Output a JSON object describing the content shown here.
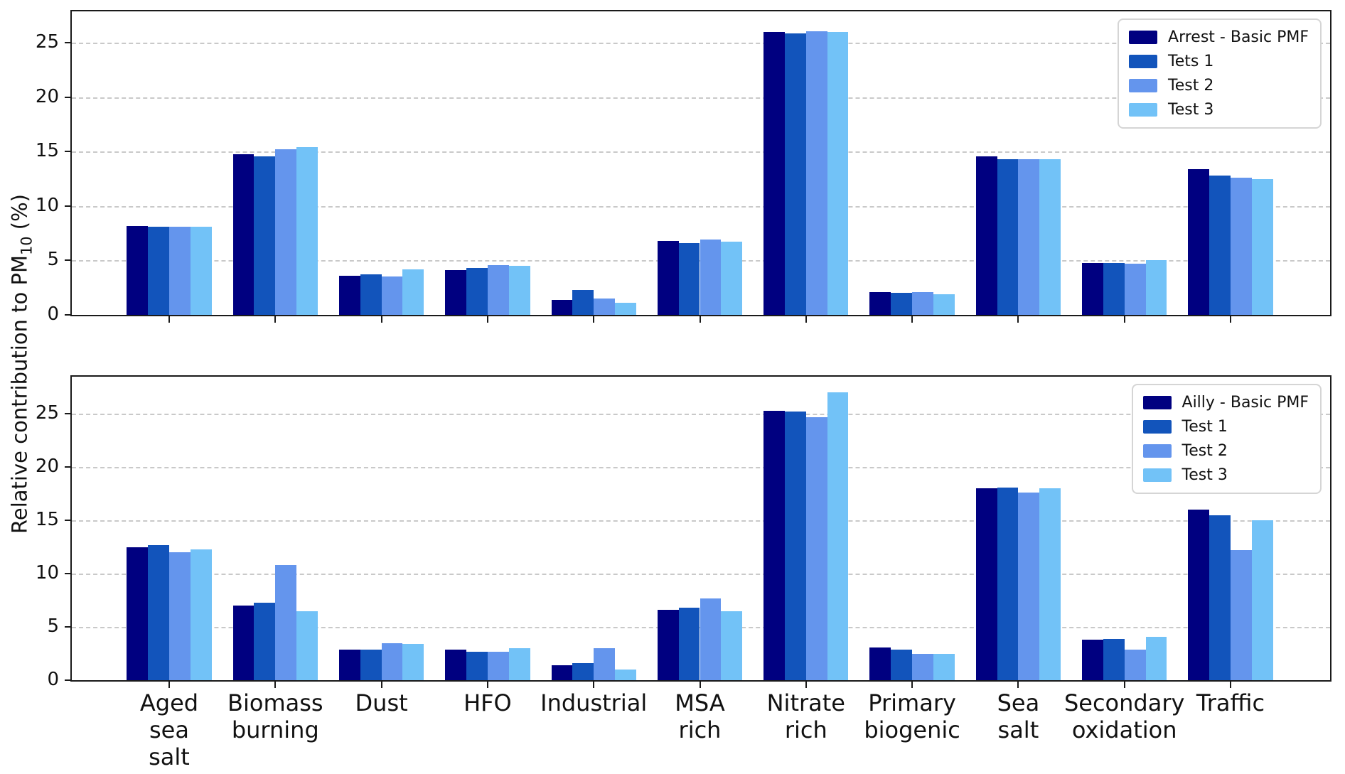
{
  "figure": {
    "ylabel": {
      "pre": "Relative contribution to PM",
      "sub": "10",
      "post": " (%)"
    }
  },
  "palette": [
    "#000080",
    "#1254bb",
    "#6495ed",
    "#72c2f7"
  ],
  "chart_data": [
    {
      "type": "bar",
      "panel": "top",
      "title": "",
      "xlabel": "",
      "ylabel": "Relative contribution to PM10 (%)",
      "ylim": [
        0,
        27.9
      ],
      "yticks": [
        0,
        5,
        10,
        15,
        20,
        25
      ],
      "grid": true,
      "show_xticklabels": false,
      "legend_position": "upper right",
      "legend_entries": [
        "Arrest - Basic PMF",
        "Tets 1",
        "Test 2",
        "Test 3"
      ],
      "categories": [
        "Aged\nsea\nsalt",
        "Biomass\nburning",
        "Dust",
        "HFO",
        "Industrial",
        "MSA\nrich",
        "Nitrate\nrich",
        "Primary\nbiogenic",
        "Sea\nsalt",
        "Secondary\noxidation",
        "Traffic"
      ],
      "series": [
        {
          "name": "Arrest - Basic PMF",
          "values": [
            8.2,
            14.8,
            3.6,
            4.1,
            1.4,
            6.8,
            26.0,
            2.1,
            14.6,
            4.8,
            13.4
          ]
        },
        {
          "name": "Tets 1",
          "values": [
            8.1,
            14.6,
            3.7,
            4.3,
            2.3,
            6.6,
            25.9,
            2.0,
            14.3,
            4.8,
            12.8
          ]
        },
        {
          "name": "Test 2",
          "values": [
            8.1,
            15.2,
            3.5,
            4.6,
            1.5,
            6.9,
            26.1,
            2.1,
            14.3,
            4.7,
            12.6
          ]
        },
        {
          "name": "Test 3",
          "values": [
            8.1,
            15.4,
            4.2,
            4.5,
            1.1,
            6.7,
            26.0,
            1.9,
            14.3,
            5.0,
            12.5
          ]
        }
      ]
    },
    {
      "type": "bar",
      "panel": "bottom",
      "title": "",
      "xlabel": "",
      "ylabel": "Relative contribution to PM10 (%)",
      "ylim": [
        0,
        28.5
      ],
      "yticks": [
        0,
        5,
        10,
        15,
        20,
        25
      ],
      "grid": true,
      "show_xticklabels": true,
      "legend_position": "upper right",
      "legend_entries": [
        "Ailly - Basic PMF",
        "Test 1",
        "Test 2",
        "Test 3"
      ],
      "categories": [
        "Aged\nsea\nsalt",
        "Biomass\nburning",
        "Dust",
        "HFO",
        "Industrial",
        "MSA\nrich",
        "Nitrate\nrich",
        "Primary\nbiogenic",
        "Sea\nsalt",
        "Secondary\noxidation",
        "Traffic"
      ],
      "series": [
        {
          "name": "Ailly - Basic PMF",
          "values": [
            12.5,
            7.0,
            2.9,
            2.9,
            1.4,
            6.6,
            25.3,
            3.1,
            18.0,
            3.8,
            16.0
          ]
        },
        {
          "name": "Test 1",
          "values": [
            12.7,
            7.3,
            2.9,
            2.7,
            1.6,
            6.8,
            25.2,
            2.9,
            18.1,
            3.9,
            15.5
          ]
        },
        {
          "name": "Test 2",
          "values": [
            12.0,
            10.8,
            3.5,
            2.7,
            3.0,
            7.7,
            24.7,
            2.5,
            17.6,
            2.9,
            12.2
          ]
        },
        {
          "name": "Test 3",
          "values": [
            12.3,
            6.5,
            3.4,
            3.0,
            1.0,
            6.5,
            27.0,
            2.5,
            18.0,
            4.1,
            15.0
          ]
        }
      ]
    }
  ]
}
